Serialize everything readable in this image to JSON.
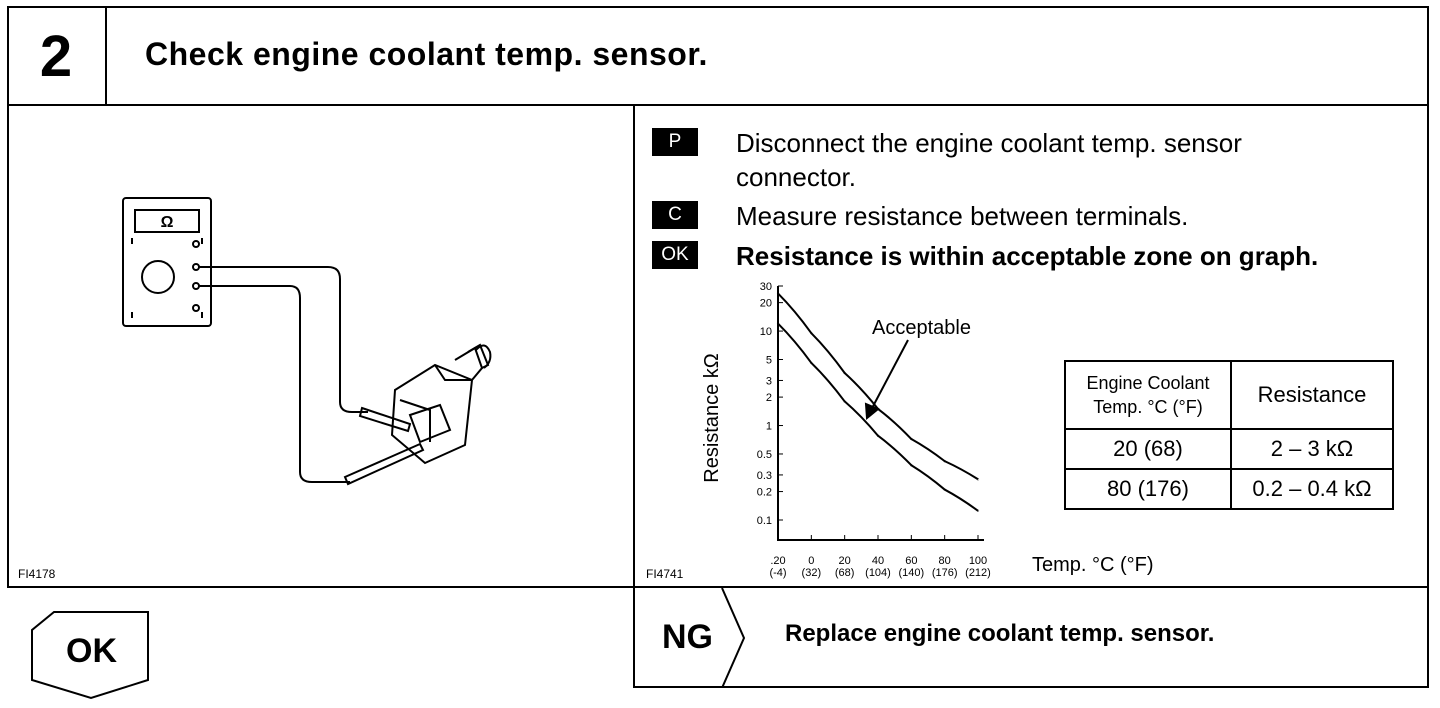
{
  "step": {
    "number": "2",
    "title": "Check engine coolant temp. sensor."
  },
  "left_panel": {
    "figure_code": "FI4178",
    "meter_symbol": "Ω"
  },
  "right_panel": {
    "instructions": [
      {
        "tag": "P",
        "text_line1": "Disconnect the engine coolant temp. sensor",
        "text_line2": "connector."
      },
      {
        "tag": "C",
        "text_line1": "Measure resistance between terminals."
      },
      {
        "tag": "OK",
        "text_line1": "Resistance is within acceptable zone on graph."
      }
    ],
    "figure_code": "FI4741"
  },
  "chart_data": {
    "type": "line",
    "title": "",
    "xlabel": "Temp. °C (°F)",
    "ylabel": "Resistance kΩ",
    "yscale": "log",
    "ylim": [
      0.1,
      30
    ],
    "xlim": [
      -20,
      100
    ],
    "y_ticks": [
      "30",
      "20",
      "10",
      "5",
      "3",
      "2",
      "1",
      "0.5",
      "0.3",
      "0.2",
      "0.1"
    ],
    "x_ticks": [
      {
        "c": ".20",
        "f": "(-4)"
      },
      {
        "c": "0",
        "f": "(32)"
      },
      {
        "c": "20",
        "f": "(68)"
      },
      {
        "c": "40",
        "f": "(104)"
      },
      {
        "c": "60",
        "f": "(140)"
      },
      {
        "c": "80",
        "f": "(176)"
      },
      {
        "c": "100",
        "f": "(212)"
      }
    ],
    "annotation": "Acceptable",
    "series": [
      {
        "x": [
          -20,
          0,
          20,
          40,
          60,
          80,
          100
        ],
        "values": [
          25,
          9.5,
          3.6,
          1.5,
          0.72,
          0.42,
          0.27
        ]
      },
      {
        "x": [
          -20,
          0,
          20,
          40,
          60,
          80,
          100
        ],
        "values": [
          12,
          4.6,
          1.8,
          0.78,
          0.38,
          0.21,
          0.125
        ]
      }
    ]
  },
  "spec_table": {
    "headers": [
      "Engine Coolant Temp. °C (°F)",
      "Resistance"
    ],
    "rows": [
      {
        "temp": "20 (68)",
        "resistance": "2 – 3 kΩ"
      },
      {
        "temp": "80 (176)",
        "resistance": "0.2 – 0.4 kΩ"
      }
    ]
  },
  "result_ng": {
    "label": "NG",
    "action": "Replace engine coolant temp. sensor."
  },
  "result_ok": {
    "label": "OK"
  }
}
